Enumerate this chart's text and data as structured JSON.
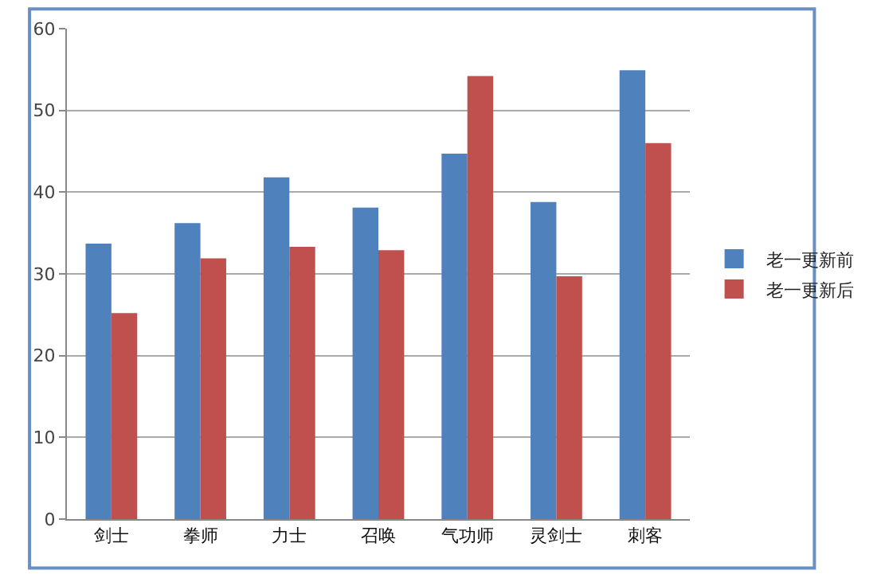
{
  "chart_data": {
    "type": "bar",
    "categories": [
      "剑士",
      "拳师",
      "力士",
      "召唤",
      "气功师",
      "灵剑士",
      "刺客"
    ],
    "series": [
      {
        "name": "老一更新前",
        "color": "#4f81bd",
        "values": [
          33.7,
          36.2,
          41.8,
          38.1,
          44.7,
          38.8,
          54.9
        ]
      },
      {
        "name": "老一更新后",
        "color": "#c0504d",
        "values": [
          25.2,
          31.9,
          33.3,
          32.9,
          54.2,
          29.7,
          46.0
        ]
      }
    ],
    "ylim": [
      0,
      60
    ],
    "yticks": [
      0,
      10,
      20,
      30,
      40,
      50,
      60
    ],
    "grid": "y",
    "legend": "right"
  }
}
